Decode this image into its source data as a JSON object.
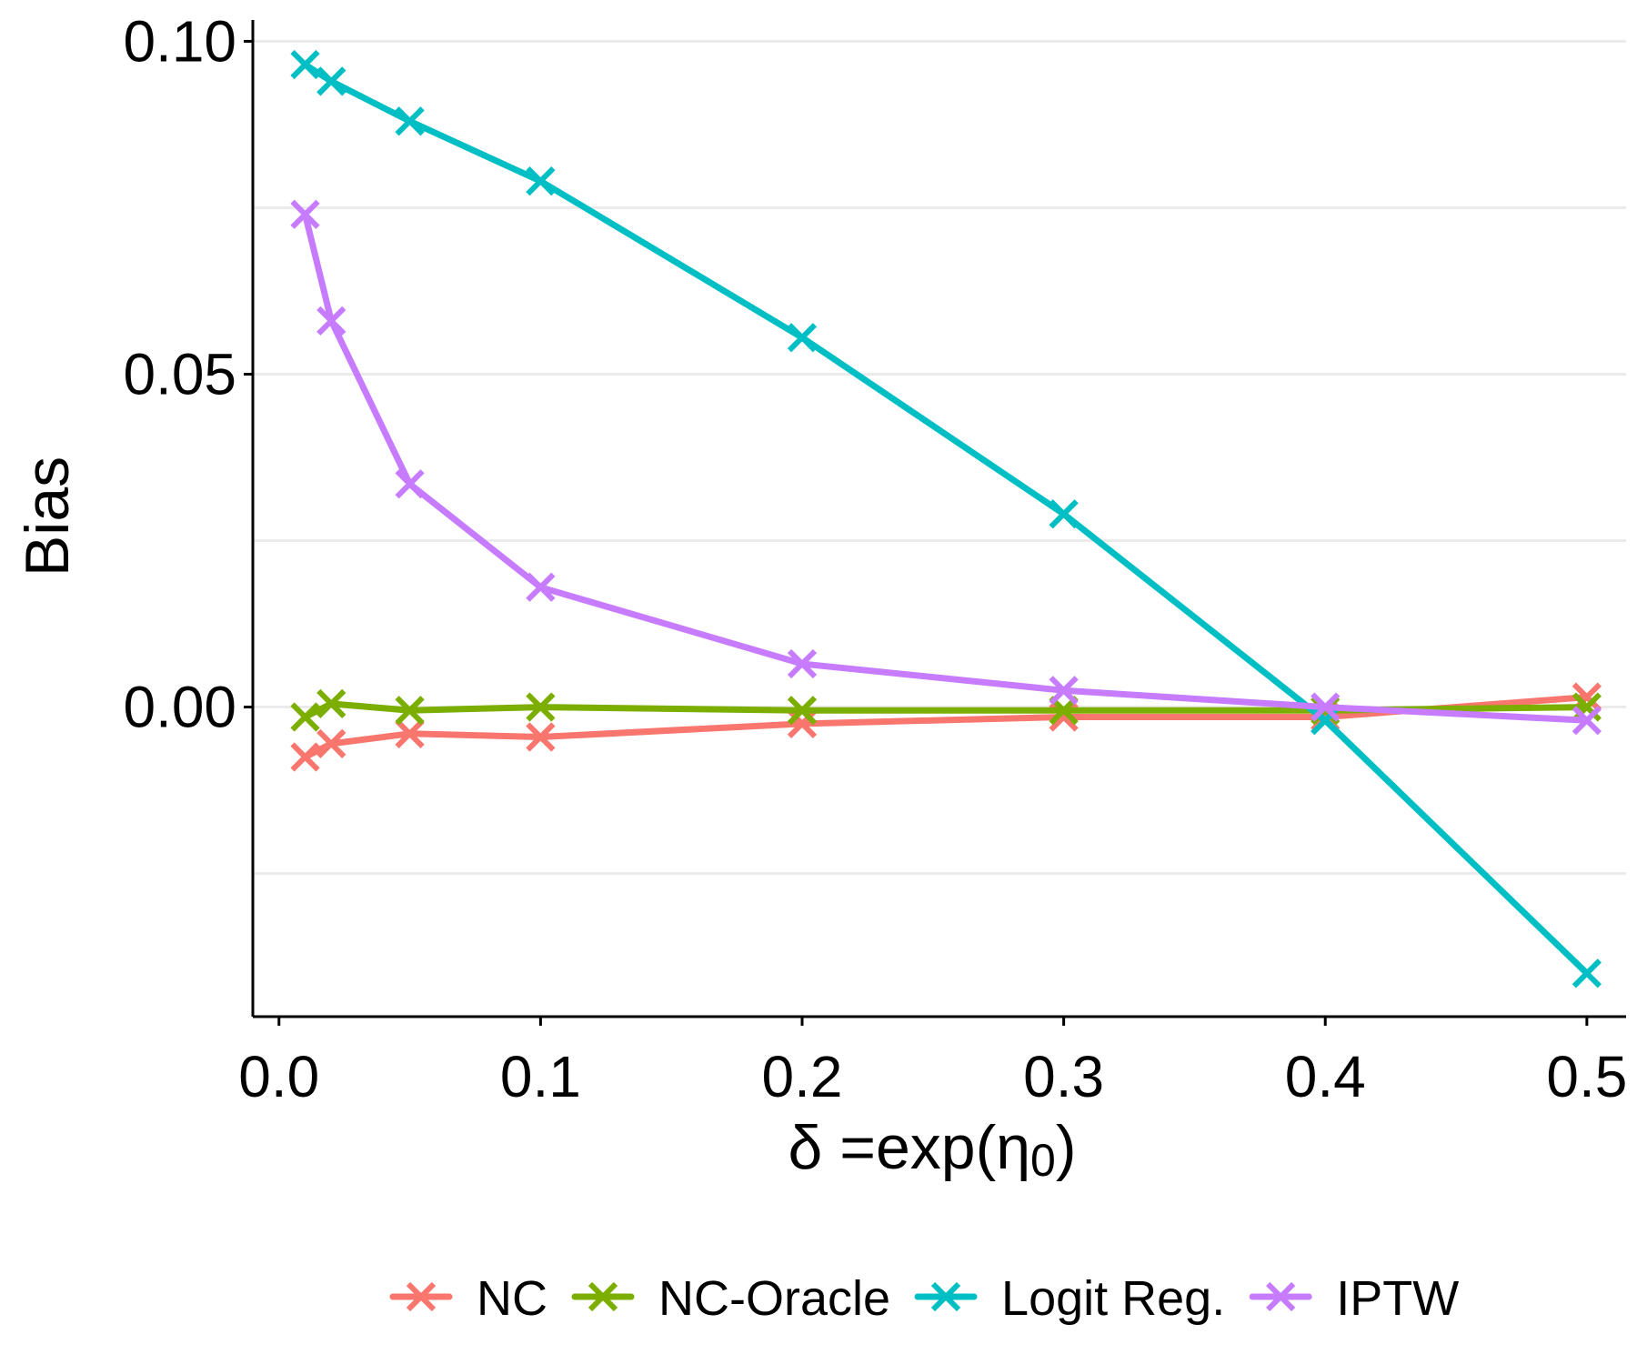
{
  "chart_data": {
    "type": "line",
    "xlabel": "δ =exp(η",
    "xlabel_sub": "0",
    "xlabel_close": ")",
    "ylabel": "Bias",
    "xlim": [
      -0.01,
      0.515
    ],
    "ylim": [
      -0.0465,
      0.1032
    ],
    "x_ticks": [
      0.0,
      0.1,
      0.2,
      0.3,
      0.4,
      0.5
    ],
    "x_tick_labels": [
      "0.0",
      "0.1",
      "0.2",
      "0.3",
      "0.4",
      "0.5"
    ],
    "y_ticks": [
      0.0,
      0.05,
      0.1
    ],
    "y_tick_labels": [
      "0.00",
      "0.05",
      "0.10"
    ],
    "y_minor_grid": [
      -0.025,
      0.025,
      0.075
    ],
    "grid": "horizontal",
    "legend_position": "bottom",
    "marker": "x",
    "x": [
      0.01,
      0.02,
      0.05,
      0.1,
      0.2,
      0.3,
      0.4,
      0.5
    ],
    "series": [
      {
        "name": "NC",
        "color": "#F8766D",
        "values": [
          -0.0075,
          -0.0055,
          -0.004,
          -0.0045,
          -0.0025,
          -0.0015,
          -0.0015,
          0.0015
        ]
      },
      {
        "name": "NC-Oracle",
        "color": "#7CAE00",
        "values": [
          -0.0015,
          0.0005,
          -0.0005,
          0.0,
          -0.0005,
          -0.0005,
          -0.0005,
          0.0
        ]
      },
      {
        "name": "Logit Reg.",
        "color": "#00BFC4",
        "values": [
          0.0965,
          0.094,
          0.088,
          0.079,
          0.0555,
          0.029,
          -0.002,
          -0.04
        ]
      },
      {
        "name": "IPTW",
        "color": "#C77CFF",
        "values": [
          0.074,
          0.058,
          0.0335,
          0.018,
          0.0065,
          0.0025,
          0.0,
          -0.002
        ]
      }
    ]
  }
}
